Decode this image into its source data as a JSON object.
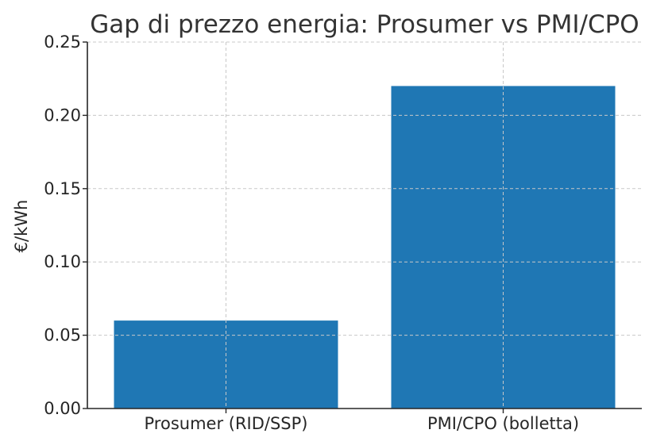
{
  "chart_data": {
    "type": "bar",
    "title": "Gap di prezzo energia: Prosumer vs PMI/CPO",
    "xlabel": "",
    "ylabel": "€/kWh",
    "categories": [
      "Prosumer (RID/SSP)",
      "PMI/CPO (bolletta)"
    ],
    "values": [
      0.06,
      0.22
    ],
    "ylim": [
      0,
      0.25
    ],
    "yticks": [
      "0.00",
      "0.05",
      "0.10",
      "0.15",
      "0.20",
      "0.25"
    ],
    "grid": true,
    "bar_color": "#1f77b4"
  }
}
